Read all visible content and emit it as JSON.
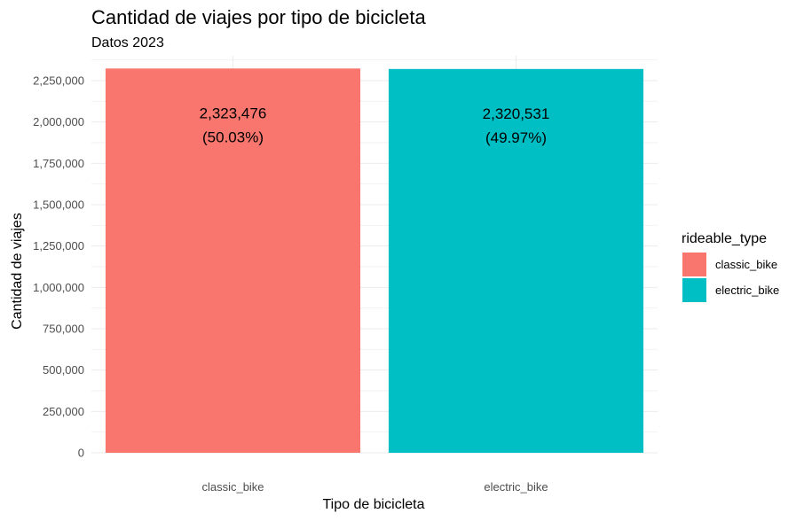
{
  "chart_data": {
    "type": "bar",
    "title": "Cantidad de viajes por tipo de bicicleta",
    "subtitle": "Datos 2023",
    "xlabel": "Tipo de bicicleta",
    "ylabel": "Cantidad de viajes",
    "categories": [
      "classic_bike",
      "electric_bike"
    ],
    "values": [
      2323476,
      2320531
    ],
    "value_labels": [
      "2,323,476",
      "2,320,531"
    ],
    "percent_labels": [
      "(50.03%)",
      "(49.97%)"
    ],
    "colors": [
      "#F8766D",
      "#00BFC4"
    ],
    "ylim": [
      0,
      2400000
    ],
    "yticks": [
      0,
      250000,
      500000,
      750000,
      1000000,
      1250000,
      1500000,
      1750000,
      2000000,
      2250000
    ],
    "ytick_labels": [
      "0",
      "250,000",
      "500,000",
      "750,000",
      "1,000,000",
      "1,250,000",
      "1,500,000",
      "1,750,000",
      "2,000,000",
      "2,250,000"
    ],
    "grid": true,
    "legend": {
      "title": "rideable_type",
      "placement": "right",
      "entries": [
        "classic_bike",
        "electric_bike"
      ]
    }
  }
}
